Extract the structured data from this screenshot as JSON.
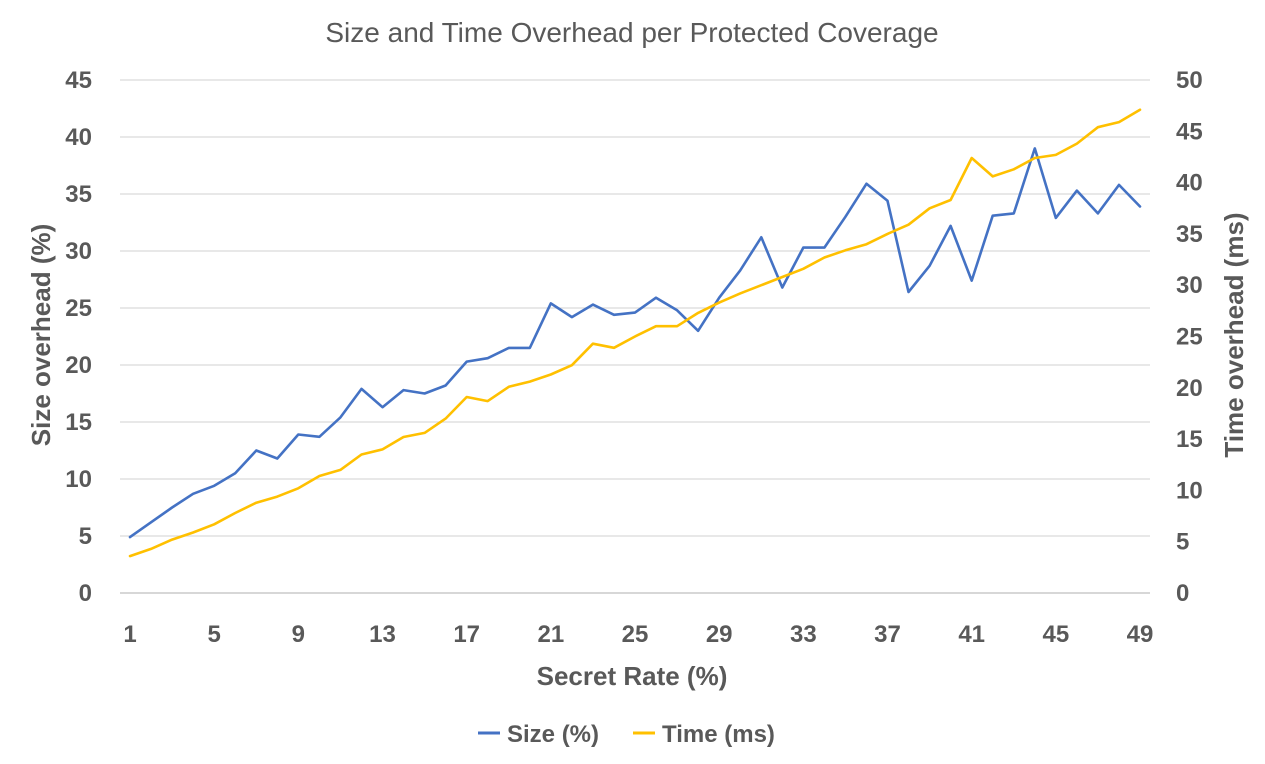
{
  "chart_data": {
    "type": "line",
    "title": "Size and Time Overhead per Protected Coverage",
    "xlabel": "Secret Rate (%)",
    "ylabel_left": "Size overhead (%)",
    "ylabel_right": "Time overhead (ms)",
    "ylim_left": [
      0,
      45
    ],
    "ylim_right": [
      0,
      50
    ],
    "yticks_left": [
      "0",
      "5",
      "10",
      "15",
      "20",
      "25",
      "30",
      "35",
      "40",
      "45"
    ],
    "yticks_right": [
      "0",
      "5",
      "10",
      "15",
      "20",
      "25",
      "30",
      "35",
      "40",
      "45",
      "50"
    ],
    "x": [
      1,
      2,
      3,
      4,
      5,
      6,
      7,
      8,
      9,
      10,
      11,
      12,
      13,
      14,
      15,
      16,
      17,
      18,
      19,
      20,
      21,
      22,
      23,
      24,
      25,
      26,
      27,
      28,
      29,
      30,
      31,
      32,
      33,
      34,
      35,
      36,
      37,
      38,
      39,
      40,
      41,
      42,
      43,
      44,
      45,
      46,
      47,
      48,
      49
    ],
    "xtick_labels": [
      "1",
      "5",
      "9",
      "13",
      "17",
      "21",
      "25",
      "29",
      "33",
      "37",
      "41",
      "45",
      "49"
    ],
    "grid": true,
    "legend_position": "bottom",
    "series": [
      {
        "name": "Size (%)",
        "axis": "left",
        "color": "#4472C4",
        "values": [
          4.9,
          6.2,
          7.5,
          8.7,
          9.4,
          10.5,
          12.5,
          11.8,
          13.9,
          13.7,
          15.4,
          17.9,
          16.3,
          17.8,
          17.5,
          18.2,
          20.3,
          20.6,
          21.5,
          21.5,
          25.4,
          24.2,
          25.3,
          24.4,
          24.6,
          25.9,
          24.8,
          23.0,
          25.9,
          28.3,
          31.2,
          26.8,
          30.3,
          30.3,
          33.0,
          35.9,
          34.4,
          26.4,
          28.7,
          32.2,
          27.4,
          33.1,
          33.3,
          39.0,
          32.9,
          35.3,
          33.3,
          35.8,
          33.9
        ]
      },
      {
        "name": "Time (ms)",
        "axis": "right",
        "color": "#FFC000",
        "values": [
          3.6,
          4.3,
          5.2,
          5.9,
          6.7,
          7.8,
          8.8,
          9.4,
          10.2,
          11.4,
          12.0,
          13.5,
          14.0,
          15.2,
          15.6,
          17.0,
          19.1,
          18.7,
          20.1,
          20.6,
          21.3,
          22.2,
          24.3,
          23.9,
          25.0,
          26.0,
          26.0,
          27.3,
          28.3,
          29.2,
          30.0,
          30.8,
          31.6,
          32.7,
          33.4,
          34.0,
          35.0,
          35.9,
          37.5,
          38.3,
          42.4,
          40.6,
          41.3,
          42.4,
          42.7,
          43.8,
          45.4,
          45.9,
          47.1
        ]
      }
    ]
  }
}
